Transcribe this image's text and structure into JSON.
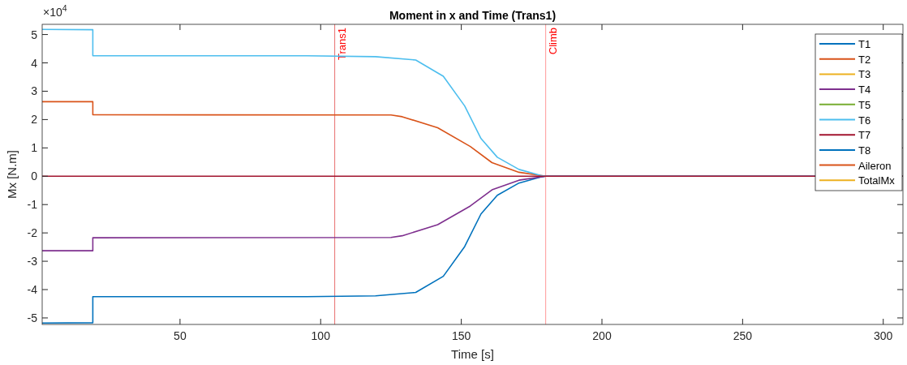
{
  "chart_data": {
    "type": "line",
    "title": "Moment in x and Time (Trans1)",
    "xlabel": "Time [s]",
    "ylabel": "Mx [N.m]",
    "annotations": [
      "×10$^{4}$"
    ],
    "xlim": [
      1,
      307
    ],
    "xticks": [
      50,
      100,
      150,
      200,
      250,
      300
    ],
    "ylim": [
      -5.23,
      5.36
    ],
    "yticks": [
      -5,
      -4,
      -3,
      -2,
      -1,
      0,
      1,
      2,
      3,
      4,
      5
    ],
    "grid": false,
    "legend": "top right",
    "marker": "none",
    "line_style": "solid",
    "ref_lines": [
      {
        "axis": "x",
        "value": 105,
        "label": "Trans1",
        "color": "#e87070"
      },
      {
        "axis": "x",
        "value": 180,
        "label": "Climb",
        "color": "#ff9999"
      }
    ],
    "series": [
      {
        "name": "T1",
        "color": "#0072bd",
        "x": [
          1,
          19,
          19,
          95,
          119.5,
          133.8,
          143.6,
          151.2,
          157,
          162.8,
          170.5,
          178.2,
          180,
          307
        ],
        "values": [
          -5.18,
          -5.17,
          -4.25,
          -4.25,
          -4.22,
          -4.1,
          -3.53,
          -2.48,
          -1.33,
          -0.67,
          -0.24,
          -0.03,
          0,
          0
        ]
      },
      {
        "name": "T2",
        "color": "#d95319",
        "x": [
          1,
          19,
          19,
          125,
          129,
          141.6,
          153.2,
          160.9,
          170.5,
          180,
          307
        ],
        "values": [
          2.63,
          2.63,
          2.17,
          2.16,
          2.1,
          1.71,
          1.05,
          0.48,
          0.14,
          0,
          0
        ]
      },
      {
        "name": "T3",
        "color": "#edb120"
      },
      {
        "name": "T4",
        "color": "#7e2f8e",
        "x": [
          1,
          19,
          19,
          125,
          129,
          141.6,
          153.2,
          160.9,
          170.5,
          180,
          307
        ],
        "values": [
          -2.63,
          -2.63,
          -2.17,
          -2.16,
          -2.1,
          -1.71,
          -1.05,
          -0.48,
          -0.14,
          0,
          0
        ]
      },
      {
        "name": "T5",
        "color": "#77ac30"
      },
      {
        "name": "T6",
        "color": "#4dbeee",
        "x": [
          1,
          19,
          19,
          95,
          119.5,
          133.8,
          143.6,
          151.2,
          157,
          162.8,
          170.5,
          178.2,
          180,
          307
        ],
        "values": [
          5.18,
          5.17,
          4.25,
          4.25,
          4.22,
          4.1,
          3.53,
          2.48,
          1.33,
          0.67,
          0.24,
          0.03,
          0,
          0
        ]
      },
      {
        "name": "T7",
        "color": "#a2142f",
        "x": [
          1,
          307
        ],
        "values": [
          0,
          0
        ]
      },
      {
        "name": "T8",
        "color": "#0072bd"
      },
      {
        "name": "Aileron",
        "color": "#d95319"
      },
      {
        "name": "TotalMx",
        "color": "#edb120"
      }
    ]
  }
}
